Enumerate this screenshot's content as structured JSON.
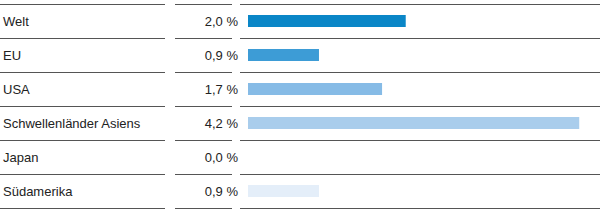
{
  "chart_data": {
    "type": "bar",
    "orientation": "horizontal",
    "categories": [
      "Welt",
      "EU",
      "USA",
      "Schwellenländer Asiens",
      "Japan",
      "Südamerika"
    ],
    "values": [
      2.0,
      0.9,
      1.7,
      4.2,
      0.0,
      0.9
    ],
    "value_labels": [
      "2,0 %",
      "0,9 %",
      "1,7 %",
      "4,2 %",
      "0,0 %",
      "0,9 %"
    ],
    "colors": [
      "#0a86c7",
      "#3d9cd6",
      "#86bbe6",
      "#a9cdec",
      "#c7def2",
      "#e4eef9"
    ],
    "xlim": [
      0,
      4.4
    ],
    "xticks": [],
    "data_labels": true,
    "tick_labels": "y",
    "grid": false
  }
}
